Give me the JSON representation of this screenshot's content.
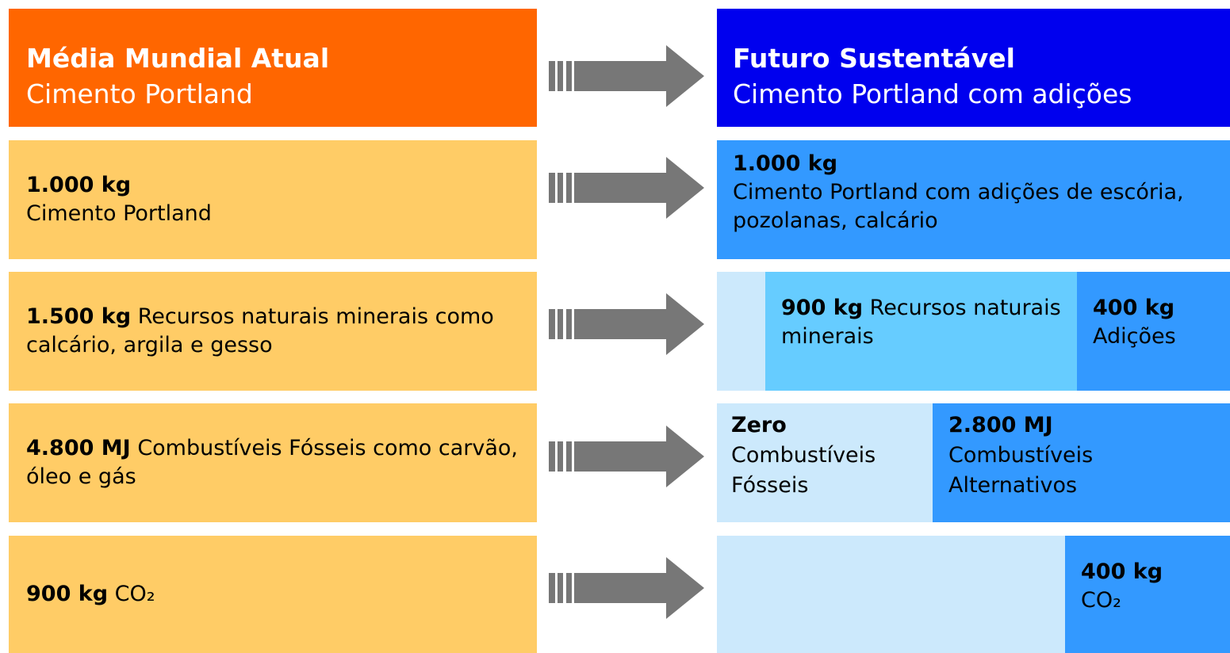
{
  "left": {
    "header": {
      "title": "Média Mundial Atual",
      "subtitle": "Cimento Portland"
    },
    "rows": [
      {
        "bold": "1.000 kg",
        "text": "Cimento Portland"
      },
      {
        "bold": "1.500 kg",
        "text": "Recursos naturais minerais como calcário, argila e gesso"
      },
      {
        "bold": "4.800 MJ",
        "text": "Combustíveis Fósseis como carvão, óleo e gás"
      },
      {
        "bold": "900 kg",
        "text": "CO₂"
      }
    ]
  },
  "right": {
    "header": {
      "title": "Futuro Sustentável",
      "subtitle": "Cimento Portland com adições"
    },
    "rows": [
      {
        "bold": "1.000 kg",
        "text": "Cimento Portland com adições de escória, pozolanas, calcário"
      },
      {
        "minerals": {
          "bold": "900 kg",
          "text": "Recursos naturais minerais"
        },
        "additions": {
          "bold": "400 kg",
          "text": "Adições"
        }
      },
      {
        "fossil": {
          "bold": "Zero",
          "text": "Combustíveis Fósseis"
        },
        "alternative": {
          "bold": "2.800 MJ",
          "text": "Combustíveis Alternativos"
        }
      },
      {
        "co2": {
          "bold": "400 kg",
          "text": "CO₂"
        }
      }
    ]
  }
}
